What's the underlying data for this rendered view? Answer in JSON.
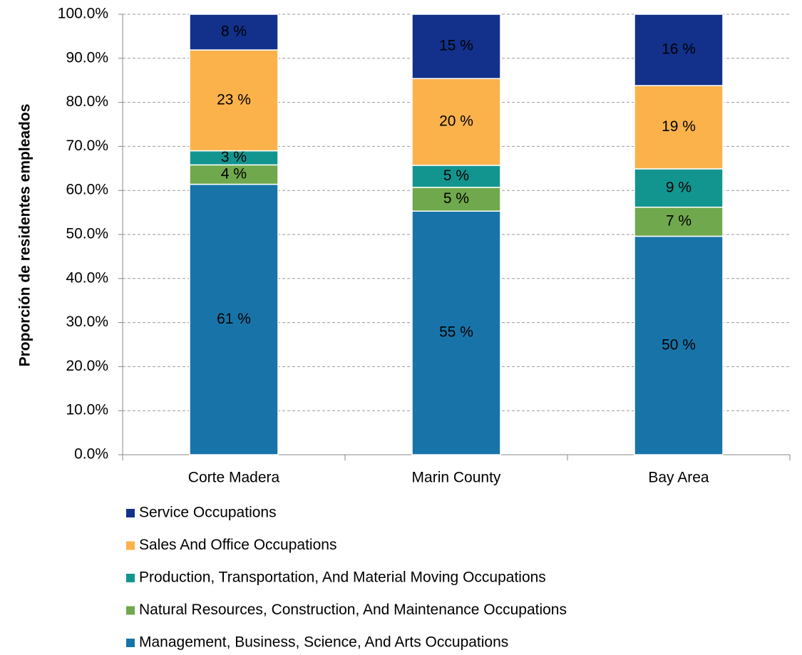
{
  "chart_data": {
    "type": "stacked_bar",
    "y_label": "Proporción de residentes empleados",
    "categories": [
      "Corte Madera",
      "Marin County",
      "Bay Area"
    ],
    "series": [
      {
        "name": "Management, Business, Science, And Arts Occupations",
        "color": "#1874a8",
        "values": [
          61.4,
          55.3,
          49.6
        ],
        "value_labels": [
          "61 %",
          "55 %",
          "50 %"
        ]
      },
      {
        "name": "Natural Resources, Construction, And Maintenance Occupations",
        "color": "#70a84d",
        "values": [
          4.4,
          5.4,
          6.6
        ],
        "value_labels": [
          "4 %",
          "5 %",
          "7 %"
        ]
      },
      {
        "name": "Production, Transportation, And Material Moving Occupations",
        "color": "#13958f",
        "values": [
          3.2,
          5.0,
          8.7
        ],
        "value_labels": [
          "3 %",
          "5 %",
          "9 %"
        ]
      },
      {
        "name": "Sales And Office Occupations",
        "color": "#fbb24b",
        "values": [
          22.9,
          19.7,
          18.9
        ],
        "value_labels": [
          "23 %",
          "20 %",
          "19 %"
        ]
      },
      {
        "name": "Service Occupations",
        "color": "#13308a",
        "values": [
          8.1,
          14.6,
          16.2
        ],
        "value_labels": [
          "8 %",
          "15 %",
          "16 %"
        ]
      }
    ],
    "ylim": [
      0,
      100
    ],
    "yticks": [
      {
        "value": 0,
        "label": "0.0%"
      },
      {
        "value": 10,
        "label": "10.0%"
      },
      {
        "value": 20,
        "label": "20.0%"
      },
      {
        "value": 30,
        "label": "30.0%"
      },
      {
        "value": 40,
        "label": "40.0%"
      },
      {
        "value": 50,
        "label": "50.0%"
      },
      {
        "value": 60,
        "label": "60.0%"
      },
      {
        "value": 70,
        "label": "70.0%"
      },
      {
        "value": 80,
        "label": "80.0%"
      },
      {
        "value": 90,
        "label": "90.0%"
      },
      {
        "value": 100,
        "label": "100.0%"
      }
    ],
    "grid": true
  }
}
